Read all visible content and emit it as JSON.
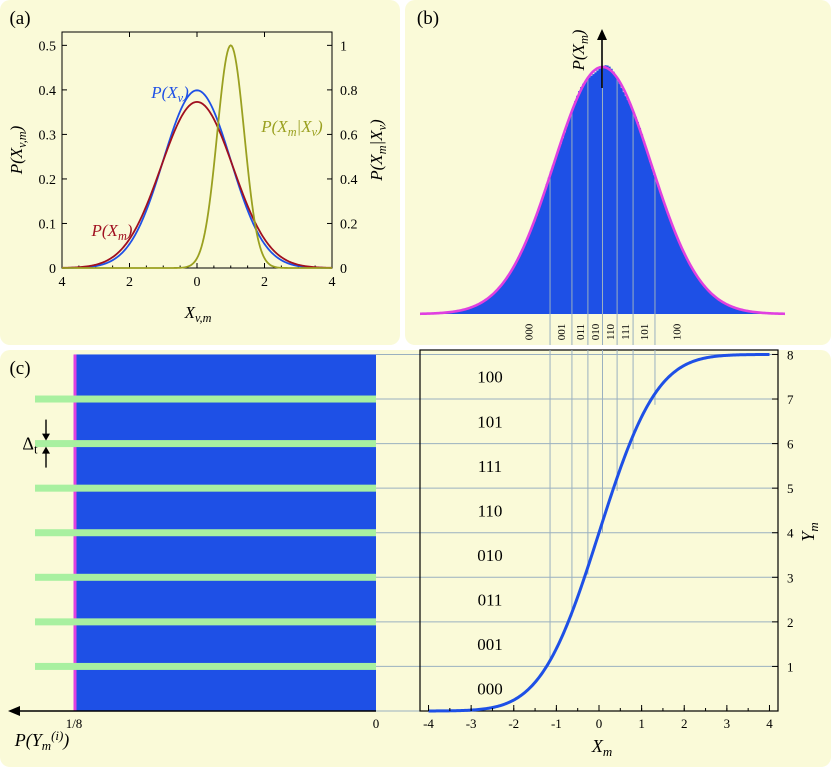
{
  "colors": {
    "panel_bg": "#fafad8",
    "blue": "#1e50e6",
    "magenta": "#e040e0",
    "darkred": "#a01020",
    "olive": "#9aa020",
    "green": "#a8f0a0",
    "grid": "#9ab0c0"
  },
  "chart_data": [
    {
      "panel": "(a)",
      "type": "line",
      "xlabel": "X_{v,m}",
      "ylabel_left": "P(X_{v,m})",
      "ylabel_right": "P(X_m|X_v)",
      "x_ticks": [
        "4",
        "2",
        "0",
        "2",
        "4"
      ],
      "xlim": [
        -4,
        4
      ],
      "ylim_left": [
        0,
        0.53
      ],
      "y_ticks_left": [
        "0",
        "0.1",
        "0.2",
        "0.3",
        "0.4",
        "0.5"
      ],
      "ylim_right": [
        0,
        1.06
      ],
      "y_ticks_right": [
        "0",
        "0.2",
        "0.4",
        "0.6",
        "0.8",
        "1"
      ],
      "series": [
        {
          "name": "P(X_v)",
          "label": "P(X",
          "sub": "v",
          "axis": "left",
          "mean": 0,
          "sigma": 1.0,
          "peak": 0.399
        },
        {
          "name": "P(X_m)",
          "label": "P(X",
          "sub": "m",
          "axis": "left",
          "mean": 0,
          "sigma": 1.07,
          "peak": 0.373
        },
        {
          "name": "P(X_m|X_v)",
          "label": "P(X",
          "sub": "m",
          "tail": "|X",
          "sub2": "v",
          "axis": "right",
          "mean": 1.0,
          "sigma": 0.4,
          "peak": 1.0
        }
      ]
    },
    {
      "panel": "(b)",
      "type": "bar",
      "ylabel": "P(X_m)",
      "description": "histogram of X_m with Gaussian fit",
      "xlim": [
        -4,
        4
      ],
      "mean": 0,
      "sigma": 1.07,
      "bin_labels": [
        "000",
        "001",
        "011",
        "010",
        "110",
        "111",
        "101",
        "100"
      ],
      "boundaries": [
        -1.15,
        -0.67,
        -0.32,
        0,
        0.32,
        0.67,
        1.15
      ]
    },
    {
      "panel": "(c)",
      "type": "line",
      "xlabel": "X_m",
      "ylabel": "Y_m",
      "xlim": [
        -4.2,
        4.2
      ],
      "ylim": [
        0,
        8.1
      ],
      "x_ticks": [
        "-4",
        "-3",
        "-2",
        "-1",
        "0",
        "1",
        "2",
        "3",
        "4"
      ],
      "x_tick_values": [
        -4,
        -3,
        -2,
        -1,
        0,
        1,
        2,
        3,
        4
      ],
      "y_ticks": [
        "1",
        "2",
        "3",
        "4",
        "5",
        "6",
        "7",
        "8"
      ],
      "y_tick_values": [
        1,
        2,
        3,
        4,
        5,
        6,
        7,
        8
      ],
      "curve": "8*Phi(x/1.07)",
      "band_labels": [
        "000",
        "001",
        "011",
        "010",
        "110",
        "111",
        "101",
        "100"
      ],
      "left_xlabel": "P(Y_m^{(i)})",
      "left_ticks": [
        "1/8",
        "0"
      ],
      "delta_label": "Δ",
      "delta_sub": "t"
    }
  ],
  "panel_labels": {
    "a": "(a)",
    "b": "(b)",
    "c": "(c)"
  }
}
